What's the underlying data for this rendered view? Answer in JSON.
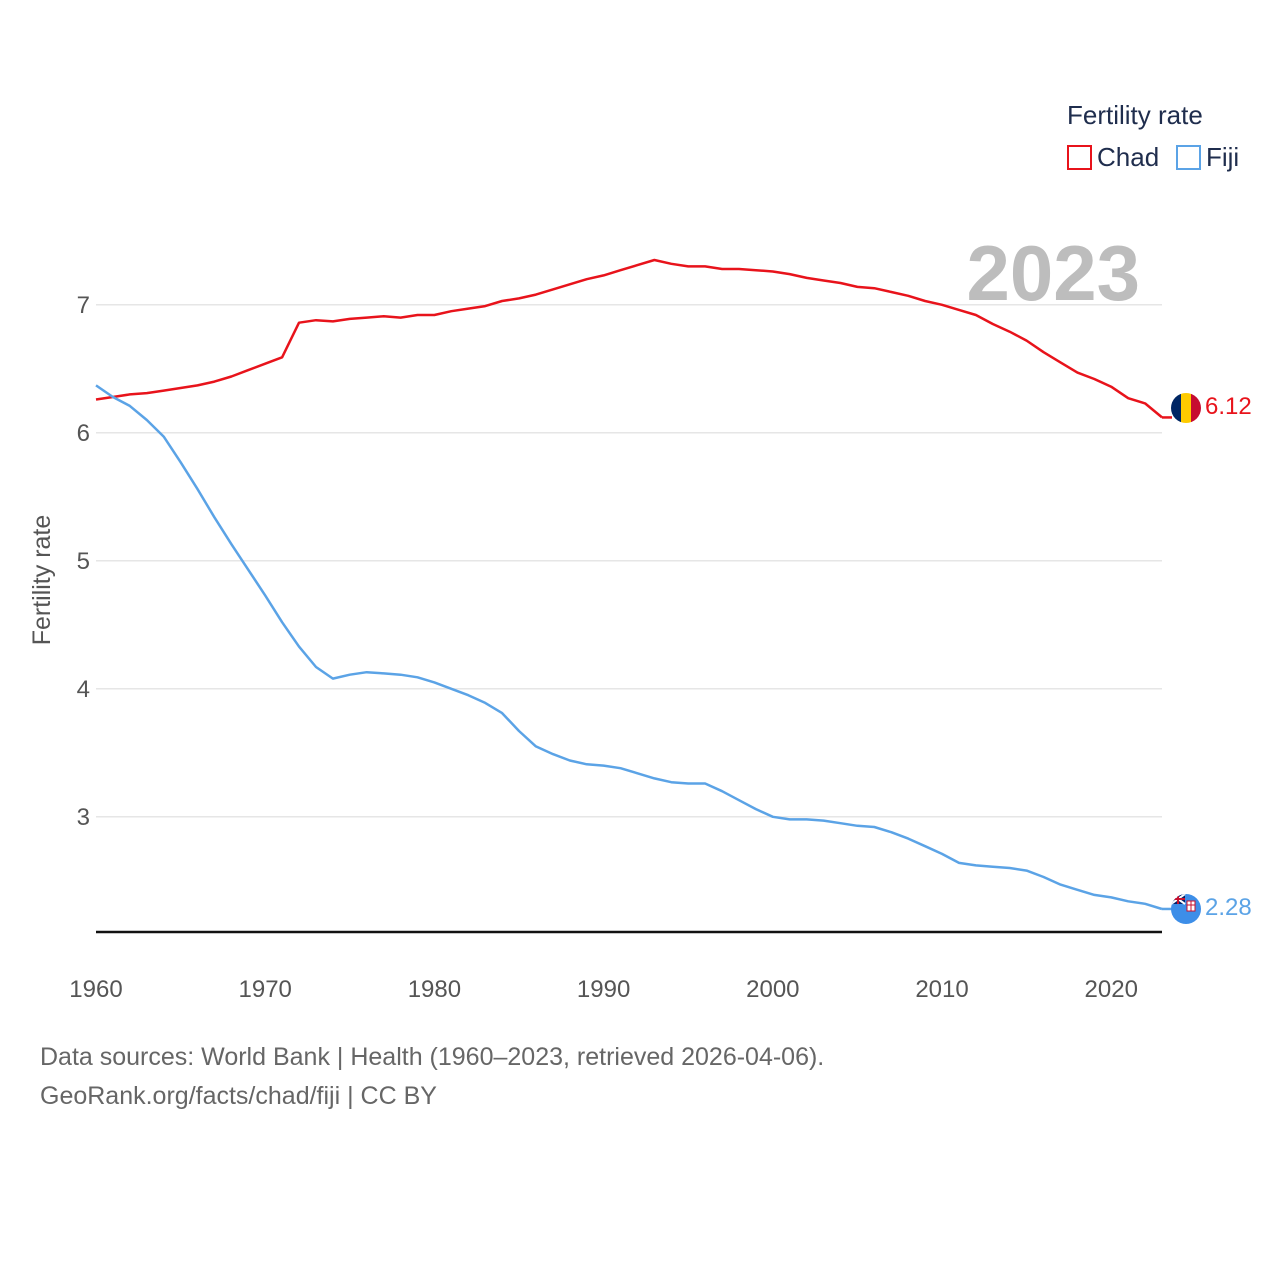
{
  "chart_data": {
    "type": "line",
    "title": "",
    "ylabel": "Fertility rate",
    "xlabel": "",
    "xlim": [
      1960,
      2023
    ],
    "ylim": [
      2.1,
      7.6
    ],
    "x_ticks": [
      1960,
      1970,
      1980,
      1990,
      2000,
      2010,
      2020
    ],
    "y_ticks": [
      3,
      4,
      5,
      6,
      7
    ],
    "grid": true,
    "legend": {
      "title": "Fertility rate",
      "position": "top-right",
      "entries": [
        "Chad",
        "Fiji"
      ]
    },
    "current_year_label": "2023",
    "x": [
      1960,
      1961,
      1962,
      1963,
      1964,
      1965,
      1966,
      1967,
      1968,
      1969,
      1970,
      1971,
      1972,
      1973,
      1974,
      1975,
      1976,
      1977,
      1978,
      1979,
      1980,
      1981,
      1982,
      1983,
      1984,
      1985,
      1986,
      1987,
      1988,
      1989,
      1990,
      1991,
      1992,
      1993,
      1994,
      1995,
      1996,
      1997,
      1998,
      1999,
      2000,
      2001,
      2002,
      2003,
      2004,
      2005,
      2006,
      2007,
      2008,
      2009,
      2010,
      2011,
      2012,
      2013,
      2014,
      2015,
      2016,
      2017,
      2018,
      2019,
      2020,
      2021,
      2022,
      2023
    ],
    "series": [
      {
        "name": "Chad",
        "color": "#e8131b",
        "end_value_label": "6.12",
        "flag": "chad-flag-icon",
        "values": [
          6.26,
          6.28,
          6.3,
          6.31,
          6.33,
          6.35,
          6.37,
          6.4,
          6.44,
          6.49,
          6.54,
          6.59,
          6.86,
          6.88,
          6.87,
          6.89,
          6.9,
          6.91,
          6.9,
          6.92,
          6.92,
          6.95,
          6.97,
          6.99,
          7.03,
          7.05,
          7.08,
          7.12,
          7.16,
          7.2,
          7.23,
          7.27,
          7.31,
          7.35,
          7.32,
          7.3,
          7.3,
          7.28,
          7.28,
          7.27,
          7.26,
          7.24,
          7.21,
          7.19,
          7.17,
          7.14,
          7.13,
          7.1,
          7.07,
          7.03,
          7.0,
          6.96,
          6.92,
          6.85,
          6.79,
          6.72,
          6.63,
          6.55,
          6.47,
          6.42,
          6.36,
          6.27,
          6.23,
          6.12
        ]
      },
      {
        "name": "Fiji",
        "color": "#5ba3e6",
        "end_value_label": "2.28",
        "flag": "fiji-flag-icon",
        "values": [
          6.37,
          6.28,
          6.21,
          6.1,
          5.97,
          5.77,
          5.56,
          5.34,
          5.13,
          4.93,
          4.73,
          4.52,
          4.33,
          4.17,
          4.08,
          4.11,
          4.13,
          4.12,
          4.11,
          4.09,
          4.05,
          4.0,
          3.95,
          3.89,
          3.81,
          3.67,
          3.55,
          3.49,
          3.44,
          3.41,
          3.4,
          3.38,
          3.34,
          3.3,
          3.27,
          3.26,
          3.26,
          3.2,
          3.13,
          3.06,
          3.0,
          2.98,
          2.98,
          2.97,
          2.95,
          2.93,
          2.92,
          2.88,
          2.83,
          2.77,
          2.71,
          2.64,
          2.62,
          2.61,
          2.6,
          2.58,
          2.53,
          2.47,
          2.43,
          2.39,
          2.37,
          2.34,
          2.32,
          2.28
        ]
      }
    ]
  },
  "footer": {
    "source_line": "Data sources: World Bank | Health (1960–2023, retrieved 2026-04-06).",
    "url_line": "GeoRank.org/facts/chad/fiji | CC BY"
  }
}
